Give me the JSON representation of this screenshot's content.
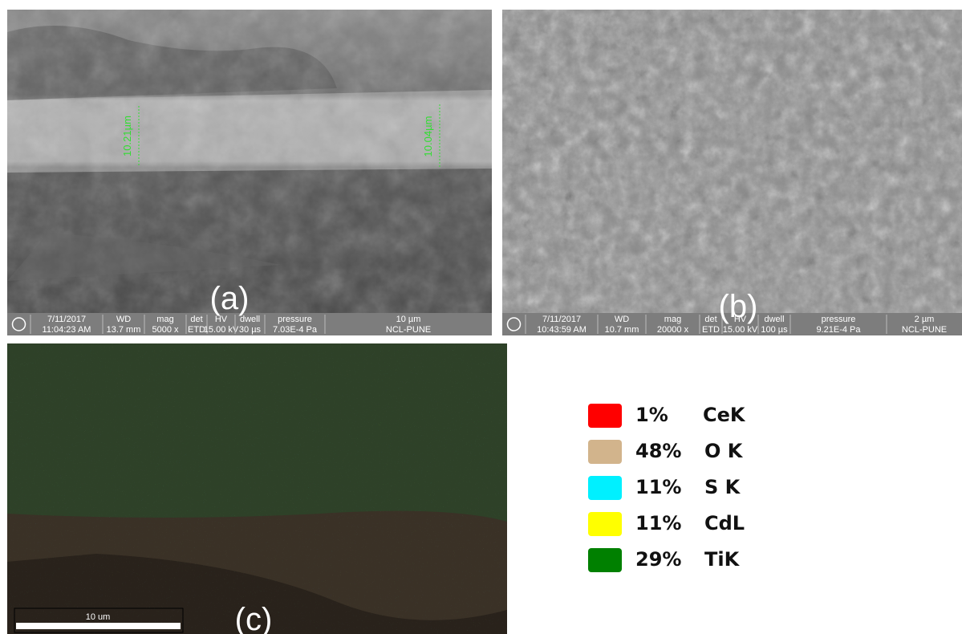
{
  "panels": [
    {
      "label": "(a)",
      "measurements": [
        "10.21µm",
        "10.04µm"
      ],
      "info_bar": {
        "header": [
          "7/11/2017",
          "WD",
          "mag",
          "det",
          "HV",
          "dwell",
          "pressure",
          "10 µm"
        ],
        "values": [
          "11:04:23 AM",
          "13.7 mm",
          "5000 x",
          "ETD",
          "15.00 kV",
          "30 µs",
          "7.03E-4 Pa",
          "NCL-PUNE"
        ]
      }
    },
    {
      "label": "(b)",
      "info_bar": {
        "header": [
          "7/11/2017",
          "WD",
          "mag",
          "det",
          "HV",
          "dwell",
          "pressure",
          "2 µm"
        ],
        "values": [
          "10:43:59 AM",
          "10.7 mm",
          "20000 x",
          "ETD",
          "15.00 kV",
          "100 µs",
          "9.21E-4 Pa",
          "NCL-PUNE"
        ]
      }
    },
    {
      "label": "(c)",
      "scale_bar": "10 um"
    }
  ],
  "legend": [
    {
      "percent": "1%",
      "element": "CeK",
      "color": "#ff0000"
    },
    {
      "percent": "48%",
      "element": "O K",
      "color": "#d2b48c"
    },
    {
      "percent": "11%",
      "element": "S K",
      "color": "#00f0ff"
    },
    {
      "percent": "11%",
      "element": "CdL",
      "color": "#ffff00"
    },
    {
      "percent": "29%",
      "element": "TiK",
      "color": "#008000"
    }
  ]
}
